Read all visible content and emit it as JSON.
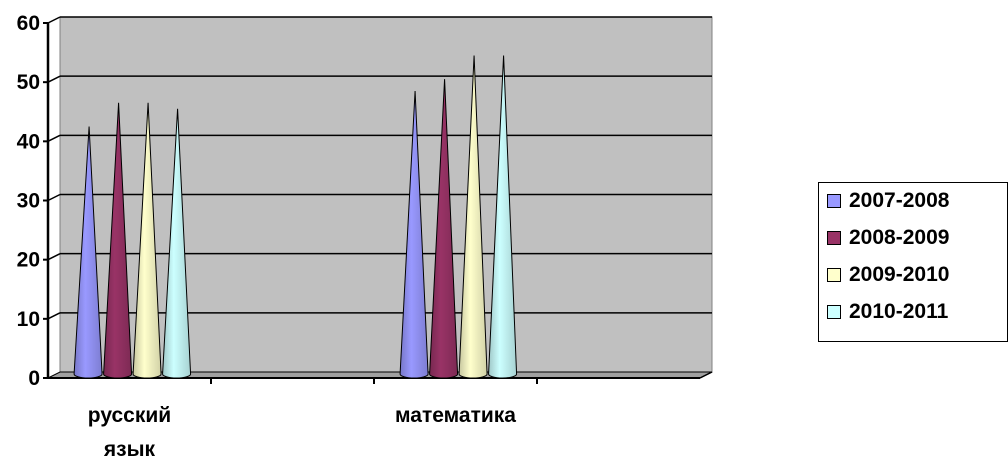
{
  "chart_data": {
    "type": "bar",
    "bar_shape": "cone",
    "categories": [
      [
        "русский",
        "язык"
      ],
      [
        "математика"
      ]
    ],
    "series": [
      {
        "name": "2007-2008",
        "color": "#9999FF",
        "values": [
          42,
          48
        ]
      },
      {
        "name": "2008-2009",
        "color": "#993366",
        "values": [
          46,
          50
        ]
      },
      {
        "name": "2009-2010",
        "color": "#FFFFCC",
        "values": [
          46,
          54
        ]
      },
      {
        "name": "2010-2011",
        "color": "#CCFFFF",
        "values": [
          45,
          54
        ]
      }
    ],
    "yticks": [
      "0",
      "10",
      "20",
      "30",
      "40",
      "50",
      "60"
    ],
    "ylim": [
      0,
      60
    ],
    "grid": true,
    "legend": "right",
    "plot_background": "#C0C0C0"
  }
}
